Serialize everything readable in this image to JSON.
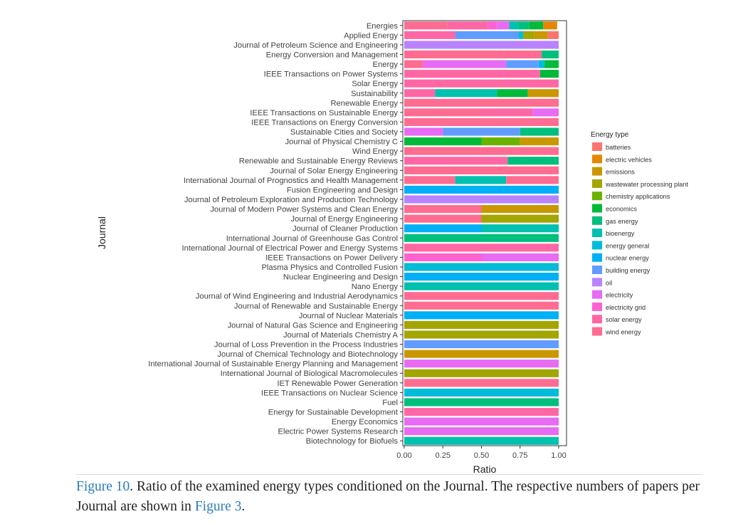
{
  "caption": {
    "figure_ref": "Figure 10",
    "text1": ". Ratio of the examined energy types conditioned on the Journal. The respective numbers of papers per Journal are shown in ",
    "ref2": "Figure 3",
    "text2": "."
  },
  "chart_data": {
    "type": "bar",
    "orientation": "horizontal",
    "stacked": true,
    "title": "",
    "xlabel": "Ratio",
    "ylabel": "Journal",
    "xlim": [
      0,
      1
    ],
    "xticks": [
      "0.00",
      "0.25",
      "0.50",
      "0.75",
      "1.00"
    ],
    "legend_title": "Energy type",
    "legend_position": "right",
    "energy_types": [
      {
        "name": "batteries",
        "color": "#F8766D"
      },
      {
        "name": "electric vehicles",
        "color": "#E58700"
      },
      {
        "name": "emissions",
        "color": "#C99800"
      },
      {
        "name": "wastewater processing plant",
        "color": "#A3A500"
      },
      {
        "name": "chemistry applications",
        "color": "#6BB100"
      },
      {
        "name": "economics",
        "color": "#00BA38"
      },
      {
        "name": "gas energy",
        "color": "#00BF7D"
      },
      {
        "name": "bioenergy",
        "color": "#00C0AF"
      },
      {
        "name": "energy general",
        "color": "#00BCD8"
      },
      {
        "name": "nuclear energy",
        "color": "#00B0F6"
      },
      {
        "name": "building energy",
        "color": "#619CFF"
      },
      {
        "name": "oil",
        "color": "#B983FF"
      },
      {
        "name": "electricity",
        "color": "#E76BF3"
      },
      {
        "name": "electricity grid",
        "color": "#FD61D1"
      },
      {
        "name": "solar energy",
        "color": "#FF67A4"
      },
      {
        "name": "wind energy",
        "color": "#FF6C91"
      }
    ],
    "rows": [
      {
        "journal": "Energies",
        "segments": [
          [
            "wind energy",
            0.28
          ],
          [
            "solar energy",
            0.26
          ],
          [
            "electricity grid",
            0.06
          ],
          [
            "electricity",
            0.08
          ],
          [
            "bioenergy",
            0.06
          ],
          [
            "gas energy",
            0.07
          ],
          [
            "economics",
            0.09
          ],
          [
            "electric vehicles",
            0.09
          ]
        ]
      },
      {
        "journal": "Applied Energy",
        "segments": [
          [
            "solar energy",
            0.33
          ],
          [
            "building energy",
            0.41
          ],
          [
            "energy general",
            0.03
          ],
          [
            "wastewater processing plant",
            0.07
          ],
          [
            "emissions",
            0.09
          ],
          [
            "batteries",
            0.07
          ]
        ]
      },
      {
        "journal": "Journal of Petroleum Science and Engineering",
        "segments": [
          [
            "oil",
            1.0
          ]
        ]
      },
      {
        "journal": "Energy Conversion and Management",
        "segments": [
          [
            "wind energy",
            0.89
          ],
          [
            "gas energy",
            0.11
          ]
        ]
      },
      {
        "journal": "Energy",
        "segments": [
          [
            "wind energy",
            0.12
          ],
          [
            "electricity",
            0.54
          ],
          [
            "building energy",
            0.21
          ],
          [
            "energy general",
            0.04
          ],
          [
            "economics",
            0.09
          ]
        ]
      },
      {
        "journal": "IEEE Transactions on Power Systems",
        "segments": [
          [
            "solar energy",
            0.88
          ],
          [
            "economics",
            0.12
          ]
        ]
      },
      {
        "journal": "Solar Energy",
        "segments": [
          [
            "solar energy",
            1.0
          ]
        ]
      },
      {
        "journal": "Sustainability",
        "segments": [
          [
            "solar energy",
            0.2
          ],
          [
            "bioenergy",
            0.4
          ],
          [
            "economics",
            0.2
          ],
          [
            "emissions",
            0.2
          ]
        ]
      },
      {
        "journal": "Renewable Energy",
        "segments": [
          [
            "wind energy",
            1.0
          ]
        ]
      },
      {
        "journal": "IEEE Transactions on Sustainable Energy",
        "segments": [
          [
            "wind energy",
            0.5
          ],
          [
            "solar energy",
            0.33
          ],
          [
            "electricity",
            0.17
          ]
        ]
      },
      {
        "journal": "IEEE Transactions on Energy Conversion",
        "segments": [
          [
            "wind energy",
            1.0
          ]
        ]
      },
      {
        "journal": "Sustainable Cities and Society",
        "segments": [
          [
            "electricity",
            0.25
          ],
          [
            "building energy",
            0.5
          ],
          [
            "gas energy",
            0.25
          ]
        ]
      },
      {
        "journal": "Journal of Physical Chemistry C",
        "segments": [
          [
            "economics",
            0.5
          ],
          [
            "chemistry applications",
            0.25
          ],
          [
            "emissions",
            0.25
          ]
        ]
      },
      {
        "journal": "Wind Energy",
        "segments": [
          [
            "wind energy",
            1.0
          ]
        ]
      },
      {
        "journal": "Renewable and Sustainable Energy Reviews",
        "segments": [
          [
            "solar energy",
            0.67
          ],
          [
            "gas energy",
            0.33
          ]
        ]
      },
      {
        "journal": "Journal of Solar Energy Engineering",
        "segments": [
          [
            "wind energy",
            1.0
          ]
        ]
      },
      {
        "journal": "International Journal of Prognostics and Health Management",
        "segments": [
          [
            "wind energy",
            0.33
          ],
          [
            "bioenergy",
            0.33
          ],
          [
            "wind energy",
            0.34
          ]
        ]
      },
      {
        "journal": "Fusion Engineering and Design",
        "segments": [
          [
            "nuclear energy",
            1.0
          ]
        ]
      },
      {
        "journal": "Journal of Petroleum Exploration and Production Technology",
        "segments": [
          [
            "oil",
            1.0
          ]
        ]
      },
      {
        "journal": "Journal of Modern Power Systems and Clean Energy",
        "segments": [
          [
            "wind energy",
            0.5
          ],
          [
            "emissions",
            0.5
          ]
        ]
      },
      {
        "journal": "Journal of Energy Engineering",
        "segments": [
          [
            "wind energy",
            0.5
          ],
          [
            "wastewater processing plant",
            0.5
          ]
        ]
      },
      {
        "journal": "Journal of Cleaner Production",
        "segments": [
          [
            "nuclear energy",
            0.5
          ],
          [
            "bioenergy",
            0.5
          ]
        ]
      },
      {
        "journal": "International Journal of Greenhouse Gas Control",
        "segments": [
          [
            "gas energy",
            1.0
          ]
        ]
      },
      {
        "journal": "International Journal of Electrical Power and Energy Systems",
        "segments": [
          [
            "solar energy",
            1.0
          ]
        ]
      },
      {
        "journal": "IEEE Transactions on Power Delivery",
        "segments": [
          [
            "electricity grid",
            0.5
          ],
          [
            "electricity",
            0.5
          ]
        ]
      },
      {
        "journal": "Plasma Physics and Controlled Fusion",
        "segments": [
          [
            "energy general",
            1.0
          ]
        ]
      },
      {
        "journal": "Nuclear Engineering and Design",
        "segments": [
          [
            "nuclear energy",
            1.0
          ]
        ]
      },
      {
        "journal": "Nano Energy",
        "segments": [
          [
            "bioenergy",
            1.0
          ]
        ]
      },
      {
        "journal": "Journal of Wind Engineering and Industrial Aerodynamics",
        "segments": [
          [
            "wind energy",
            1.0
          ]
        ]
      },
      {
        "journal": "Journal of Renewable and Sustainable Energy",
        "segments": [
          [
            "wind energy",
            1.0
          ]
        ]
      },
      {
        "journal": "Journal of Nuclear Materials",
        "segments": [
          [
            "nuclear energy",
            1.0
          ]
        ]
      },
      {
        "journal": "Journal of Natural Gas Science and Engineering",
        "segments": [
          [
            "wastewater processing plant",
            1.0
          ]
        ]
      },
      {
        "journal": "Journal of Materials Chemistry A",
        "segments": [
          [
            "wastewater processing plant",
            1.0
          ]
        ]
      },
      {
        "journal": "Journal of Loss Prevention in the Process Industries",
        "segments": [
          [
            "building energy",
            1.0
          ]
        ]
      },
      {
        "journal": "Journal of Chemical Technology and Biotechnology",
        "segments": [
          [
            "emissions",
            1.0
          ]
        ]
      },
      {
        "journal": "International Journal of Sustainable Energy Planning and Management",
        "segments": [
          [
            "electricity",
            1.0
          ]
        ]
      },
      {
        "journal": "International Journal of Biological Macromolecules",
        "segments": [
          [
            "wastewater processing plant",
            1.0
          ]
        ]
      },
      {
        "journal": "IET Renewable Power Generation",
        "segments": [
          [
            "wind energy",
            1.0
          ]
        ]
      },
      {
        "journal": "IEEE Transactions on Nuclear Science",
        "segments": [
          [
            "energy general",
            1.0
          ]
        ]
      },
      {
        "journal": "Fuel",
        "segments": [
          [
            "gas energy",
            1.0
          ]
        ]
      },
      {
        "journal": "Energy for Sustainable Development",
        "segments": [
          [
            "solar energy",
            1.0
          ]
        ]
      },
      {
        "journal": "Energy Economics",
        "segments": [
          [
            "electricity",
            1.0
          ]
        ]
      },
      {
        "journal": "Electric Power Systems Research",
        "segments": [
          [
            "electricity",
            1.0
          ]
        ]
      },
      {
        "journal": "Biotechnology for Biofuels",
        "segments": [
          [
            "bioenergy",
            1.0
          ]
        ]
      }
    ]
  }
}
